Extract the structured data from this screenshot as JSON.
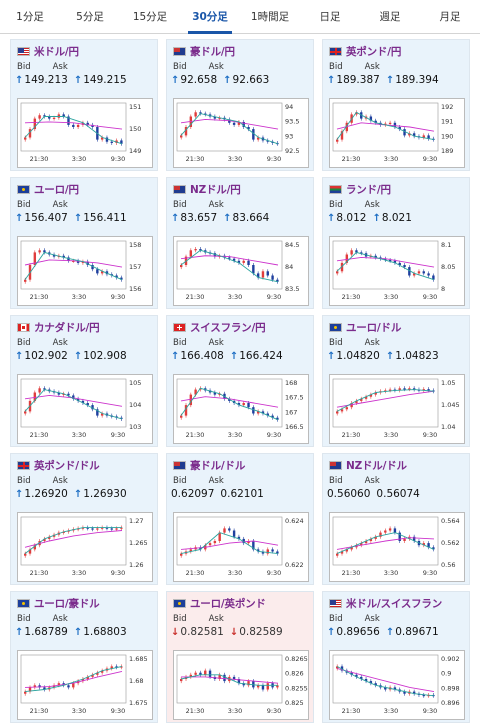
{
  "tabs": [
    {
      "label": "1分足",
      "active": false
    },
    {
      "label": "5分足",
      "active": false
    },
    {
      "label": "15分足",
      "active": false
    },
    {
      "label": "30分足",
      "active": true
    },
    {
      "label": "1時間足",
      "active": false
    },
    {
      "label": "日足",
      "active": false
    },
    {
      "label": "週足",
      "active": false
    },
    {
      "label": "月足",
      "active": false
    }
  ],
  "labels": {
    "bid": "Bid",
    "ask": "Ask"
  },
  "colors": {
    "up_arrow": "#1f6fc4",
    "down_arrow": "#c9302c",
    "candle_up": "#e03c3c",
    "candle_down": "#1f3f9e",
    "ma_short": "#2aa39e",
    "ma_long": "#cc33cc"
  },
  "cards": [
    {
      "title": "米ドル/円",
      "flag": "us",
      "bid": "149.213",
      "ask": "149.215",
      "direction": "up",
      "yticks": [
        "151",
        "150",
        "149"
      ],
      "xticks": [
        "21:30",
        "3:30",
        "9:30"
      ],
      "shape": [
        0.25,
        0.45,
        0.7,
        0.78,
        0.75,
        0.7,
        0.72,
        0.8,
        0.75,
        0.55,
        0.5,
        0.55,
        0.6,
        0.55,
        0.5,
        0.2,
        0.25,
        0.15,
        0.12,
        0.18,
        0.1
      ],
      "ma": [
        0.6,
        0.62,
        0.6,
        0.52,
        0.45
      ]
    },
    {
      "title": "豪ドル/円",
      "flag": "au",
      "bid": "92.658",
      "ask": "92.663",
      "direction": "up",
      "yticks": [
        "94",
        "93.5",
        "93",
        "92.5"
      ],
      "xticks": [
        "21:30",
        "3:30",
        "9:30"
      ],
      "shape": [
        0.3,
        0.5,
        0.75,
        0.85,
        0.82,
        0.8,
        0.75,
        0.7,
        0.72,
        0.68,
        0.6,
        0.55,
        0.62,
        0.5,
        0.45,
        0.2,
        0.25,
        0.18,
        0.15,
        0.12,
        0.1
      ],
      "ma": [
        0.6,
        0.68,
        0.65,
        0.55,
        0.45
      ]
    },
    {
      "title": "英ポンド/円",
      "flag": "gb",
      "bid": "189.387",
      "ask": "189.394",
      "direction": "up",
      "yticks": [
        "192",
        "191",
        "190",
        "189"
      ],
      "xticks": [
        "21:30",
        "3:30",
        "9:30"
      ],
      "shape": [
        0.2,
        0.4,
        0.6,
        0.8,
        0.85,
        0.7,
        0.75,
        0.65,
        0.6,
        0.55,
        0.58,
        0.6,
        0.5,
        0.45,
        0.3,
        0.35,
        0.28,
        0.25,
        0.3,
        0.22,
        0.2
      ],
      "ma": [
        0.45,
        0.6,
        0.55,
        0.5,
        0.4
      ]
    },
    {
      "title": "ユーロ/円",
      "flag": "eu",
      "bid": "156.407",
      "ask": "156.411",
      "direction": "up",
      "yticks": [
        "158",
        "157",
        "156"
      ],
      "xticks": [
        "21:30",
        "3:30",
        "9:30"
      ],
      "shape": [
        0.15,
        0.5,
        0.8,
        0.85,
        0.8,
        0.75,
        0.7,
        0.72,
        0.68,
        0.6,
        0.6,
        0.55,
        0.58,
        0.5,
        0.4,
        0.3,
        0.35,
        0.28,
        0.25,
        0.2,
        0.15
      ],
      "ma": [
        0.5,
        0.62,
        0.6,
        0.55,
        0.45
      ]
    },
    {
      "title": "NZドル/円",
      "flag": "nz",
      "bid": "83.657",
      "ask": "83.664",
      "direction": "up",
      "yticks": [
        "84.5",
        "84",
        "83.5"
      ],
      "xticks": [
        "21:30",
        "3:30",
        "9:30"
      ],
      "shape": [
        0.5,
        0.7,
        0.85,
        0.88,
        0.85,
        0.8,
        0.78,
        0.7,
        0.72,
        0.68,
        0.65,
        0.6,
        0.55,
        0.6,
        0.5,
        0.3,
        0.2,
        0.35,
        0.25,
        0.15,
        0.1
      ],
      "ma": [
        0.65,
        0.72,
        0.7,
        0.6,
        0.5
      ]
    },
    {
      "title": "ランド/円",
      "flag": "za",
      "bid": "8.012",
      "ask": "8.021",
      "direction": "up",
      "yticks": [
        "8.1",
        "8.05",
        "8"
      ],
      "xticks": [
        "21:30",
        "3:30",
        "9:30"
      ],
      "shape": [
        0.35,
        0.55,
        0.75,
        0.85,
        0.8,
        0.78,
        0.7,
        0.72,
        0.68,
        0.65,
        0.62,
        0.6,
        0.55,
        0.5,
        0.45,
        0.25,
        0.3,
        0.35,
        0.3,
        0.25,
        0.15
      ],
      "ma": [
        0.6,
        0.68,
        0.65,
        0.55,
        0.45
      ]
    },
    {
      "title": "カナダドル/円",
      "flag": "ca",
      "bid": "102.902",
      "ask": "102.908",
      "direction": "up",
      "yticks": [
        "105",
        "104",
        "103"
      ],
      "xticks": [
        "21:30",
        "3:30",
        "9:30"
      ],
      "shape": [
        0.3,
        0.55,
        0.75,
        0.85,
        0.82,
        0.78,
        0.75,
        0.7,
        0.72,
        0.68,
        0.6,
        0.55,
        0.5,
        0.45,
        0.35,
        0.2,
        0.25,
        0.2,
        0.18,
        0.15,
        0.12
      ],
      "ma": [
        0.6,
        0.68,
        0.62,
        0.52,
        0.42
      ]
    },
    {
      "title": "スイスフラン/円",
      "flag": "ch",
      "bid": "166.408",
      "ask": "166.424",
      "direction": "up",
      "yticks": [
        "168",
        "167.5",
        "167",
        "166.5"
      ],
      "xticks": [
        "21:30",
        "3:30",
        "9:30"
      ],
      "shape": [
        0.2,
        0.45,
        0.7,
        0.82,
        0.85,
        0.8,
        0.75,
        0.7,
        0.72,
        0.6,
        0.55,
        0.5,
        0.45,
        0.5,
        0.4,
        0.25,
        0.3,
        0.25,
        0.2,
        0.15,
        0.1
      ],
      "ma": [
        0.55,
        0.65,
        0.6,
        0.5,
        0.4
      ]
    },
    {
      "title": "ユーロ/ドル",
      "flag": "eu",
      "bid": "1.04820",
      "ask": "1.04823",
      "direction": "up",
      "yticks": [
        "1.05",
        "1.045",
        "1.04"
      ],
      "xticks": [
        "21:30",
        "3:30",
        "9:30"
      ],
      "shape": [
        0.3,
        0.35,
        0.4,
        0.5,
        0.55,
        0.6,
        0.65,
        0.7,
        0.75,
        0.78,
        0.8,
        0.82,
        0.8,
        0.85,
        0.83,
        0.85,
        0.82,
        0.8,
        0.83,
        0.8,
        0.78
      ],
      "ma": [
        0.4,
        0.5,
        0.6,
        0.7,
        0.78
      ]
    },
    {
      "title": "英ポンド/ドル",
      "flag": "gb",
      "bid": "1.26920",
      "ask": "1.26930",
      "direction": "up",
      "yticks": [
        "1.27",
        "1.265",
        "1.26"
      ],
      "xticks": [
        "21:30",
        "3:30",
        "9:30"
      ],
      "shape": [
        0.2,
        0.3,
        0.4,
        0.5,
        0.55,
        0.6,
        0.65,
        0.7,
        0.72,
        0.75,
        0.78,
        0.8,
        0.82,
        0.8,
        0.78,
        0.8,
        0.82,
        0.8,
        0.78,
        0.8,
        0.82
      ],
      "ma": [
        0.35,
        0.5,
        0.62,
        0.7,
        0.75
      ]
    },
    {
      "title": "豪ドル/ドル",
      "flag": "au",
      "bid": "0.62097",
      "ask": "0.62101",
      "direction": "none",
      "yticks": [
        "0.624",
        "0.622"
      ],
      "xticks": [
        "21:30",
        "3:30",
        "9:30"
      ],
      "shape": [
        0.2,
        0.25,
        0.3,
        0.35,
        0.3,
        0.4,
        0.45,
        0.5,
        0.7,
        0.8,
        0.75,
        0.6,
        0.55,
        0.45,
        0.5,
        0.3,
        0.25,
        0.2,
        0.3,
        0.25,
        0.2
      ],
      "ma": [
        0.3,
        0.35,
        0.45,
        0.5,
        0.4
      ]
    },
    {
      "title": "NZドル/ドル",
      "flag": "nz",
      "bid": "0.56060",
      "ask": "0.56074",
      "direction": "none",
      "yticks": [
        "0.564",
        "0.562",
        "0.56"
      ],
      "xticks": [
        "21:30",
        "3:30",
        "9:30"
      ],
      "shape": [
        0.2,
        0.25,
        0.3,
        0.35,
        0.4,
        0.45,
        0.5,
        0.55,
        0.6,
        0.7,
        0.75,
        0.8,
        0.7,
        0.5,
        0.55,
        0.6,
        0.5,
        0.4,
        0.45,
        0.35,
        0.3
      ],
      "ma": [
        0.3,
        0.4,
        0.5,
        0.58,
        0.55
      ]
    },
    {
      "title": "ユーロ/豪ドル",
      "flag": "eu",
      "bid": "1.68789",
      "ask": "1.68803",
      "direction": "up",
      "yticks": [
        "1.685",
        "1.68",
        "1.675"
      ],
      "xticks": [
        "21:30",
        "3:30",
        "9:30"
      ],
      "shape": [
        0.2,
        0.3,
        0.35,
        0.3,
        0.25,
        0.3,
        0.35,
        0.4,
        0.35,
        0.3,
        0.4,
        0.45,
        0.5,
        0.55,
        0.6,
        0.65,
        0.7,
        0.75,
        0.8,
        0.78,
        0.8
      ],
      "ma": [
        0.3,
        0.32,
        0.4,
        0.55,
        0.68
      ]
    },
    {
      "title": "ユーロ/英ポンド",
      "flag": "eu",
      "bid": "0.82581",
      "ask": "0.82589",
      "direction": "down",
      "yticks": [
        "0.8265",
        "0.826",
        "0.8255",
        "0.825"
      ],
      "xticks": [
        "21:30",
        "3:30",
        "9:30"
      ],
      "shape": [
        0.5,
        0.55,
        0.6,
        0.65,
        0.6,
        0.7,
        0.55,
        0.5,
        0.6,
        0.45,
        0.55,
        0.5,
        0.4,
        0.35,
        0.45,
        0.3,
        0.35,
        0.25,
        0.4,
        0.3,
        0.35
      ],
      "ma": [
        0.55,
        0.55,
        0.5,
        0.45,
        0.4
      ]
    },
    {
      "title": "米ドル/スイスフラン",
      "flag": "us",
      "bid": "0.89656",
      "ask": "0.89671",
      "direction": "up",
      "yticks": [
        "0.902",
        "0.9",
        "0.898",
        "0.896"
      ],
      "xticks": [
        "21:30",
        "3:30",
        "9:30"
      ],
      "shape": [
        0.8,
        0.7,
        0.65,
        0.6,
        0.55,
        0.5,
        0.45,
        0.4,
        0.35,
        0.3,
        0.25,
        0.3,
        0.25,
        0.2,
        0.15,
        0.2,
        0.15,
        0.12,
        0.1,
        0.12,
        0.1
      ],
      "ma": [
        0.75,
        0.6,
        0.45,
        0.3,
        0.2
      ]
    }
  ]
}
